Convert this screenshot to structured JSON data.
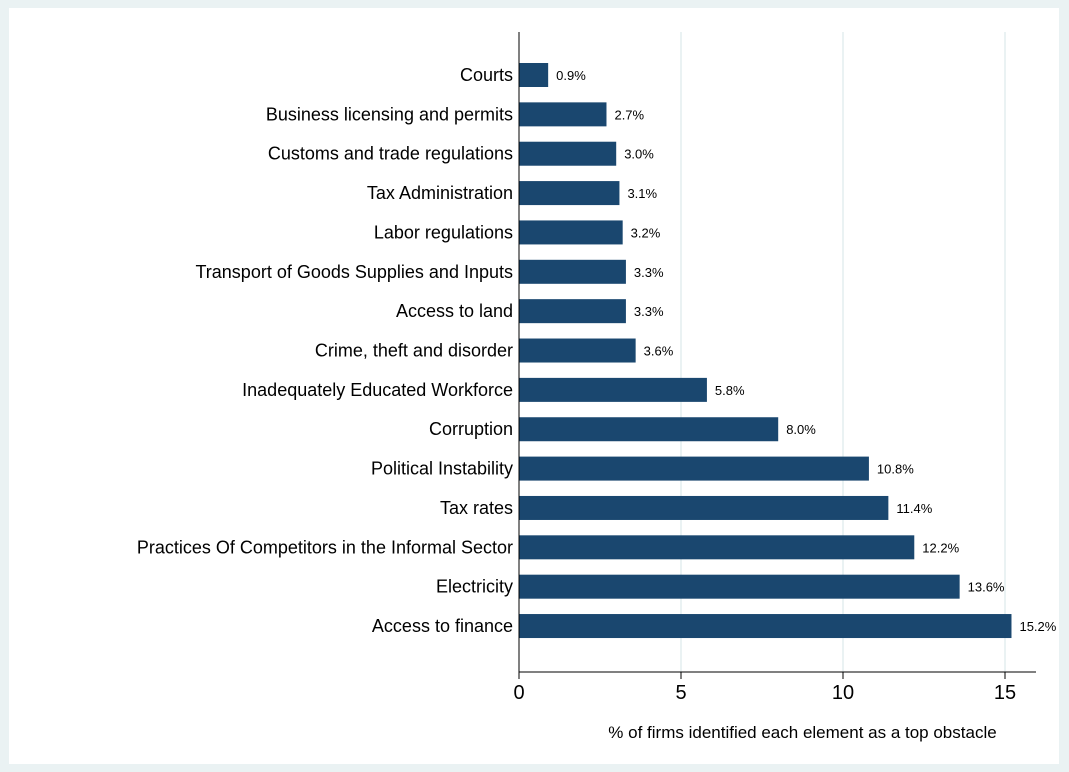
{
  "chart_data": {
    "type": "bar",
    "orientation": "horizontal",
    "categories": [
      "Courts",
      "Business licensing and permits",
      "Customs and trade regulations",
      "Tax Administration",
      "Labor regulations",
      "Transport of Goods Supplies and Inputs",
      "Access to land",
      "Crime, theft and disorder",
      "Inadequately Educated Workforce",
      "Corruption",
      "Political Instability",
      "Tax rates",
      "Practices Of Competitors in the Informal Sector",
      "Electricity",
      "Access to finance"
    ],
    "values": [
      0.9,
      2.7,
      3.0,
      3.1,
      3.2,
      3.3,
      3.3,
      3.6,
      5.8,
      8.0,
      10.8,
      11.4,
      12.2,
      13.6,
      15.2
    ],
    "value_labels": [
      "0.9%",
      "2.7%",
      "3.0%",
      "3.1%",
      "3.2%",
      "3.3%",
      "3.3%",
      "3.6%",
      "5.8%",
      "8.0%",
      "10.8%",
      "11.4%",
      "12.2%",
      "13.6%",
      "15.2%"
    ],
    "xlabel": "% of firms identified each element as a top obstacle",
    "ylabel": "",
    "xlim": [
      0,
      16
    ],
    "xticks": [
      0,
      5,
      10,
      15
    ],
    "xtick_labels": [
      "0",
      "5",
      "10",
      "15"
    ],
    "grid": true,
    "legend": "none",
    "colors": {
      "bar": "#1a476f",
      "background": "#eaf2f3",
      "plot_background": "#ffffff",
      "grid": "#eaf2f3",
      "axis": "#000000"
    }
  }
}
